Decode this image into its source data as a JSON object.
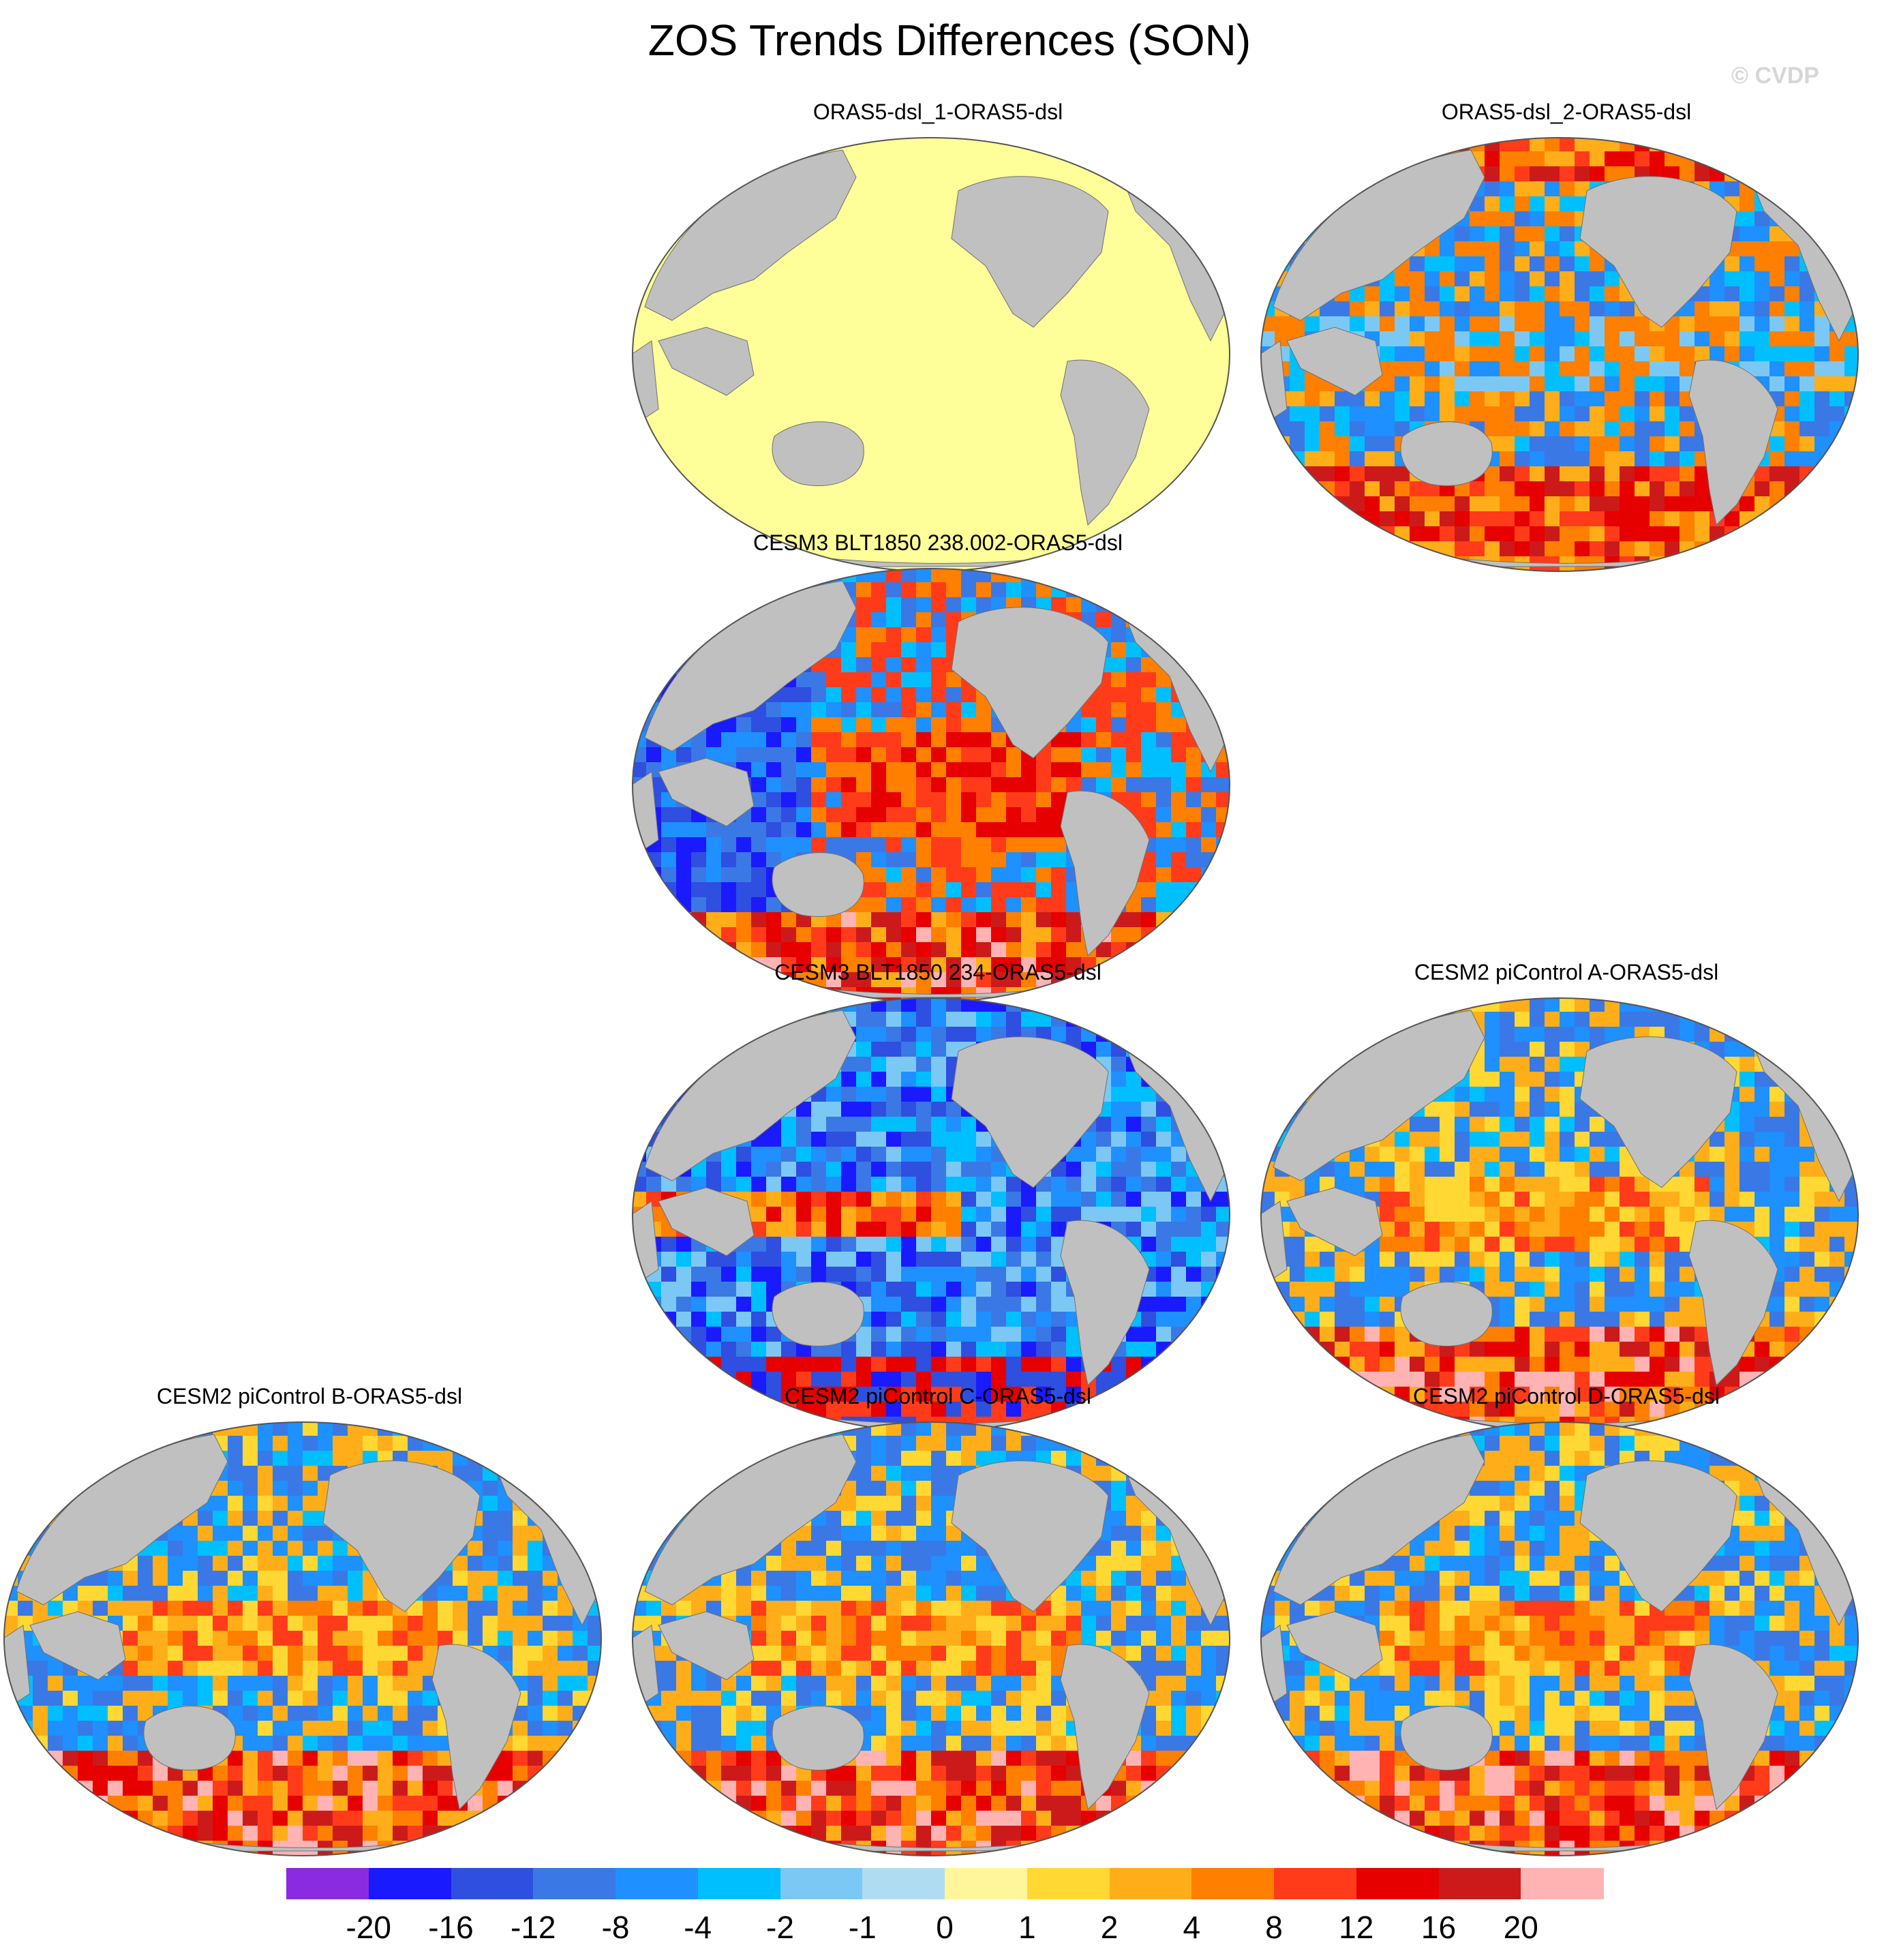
{
  "figure": {
    "title": "ZOS Trends Differences (SON)",
    "copyright": "© CVDP"
  },
  "panels": [
    {
      "title": "ORAS5-dsl_1-ORAS5-dsl",
      "pattern": "uniform"
    },
    {
      "title": "ORAS5-dsl_2-ORAS5-dsl",
      "pattern": "mixed-a"
    },
    {
      "title": "CESM3 BLT1850 238.002-ORAS5-dsl",
      "pattern": "warm-pacific"
    },
    {
      "title": "CESM3 BLT1850 234-ORAS5-dsl",
      "pattern": "cool"
    },
    {
      "title": "CESM2 piControl A-ORAS5-dsl",
      "pattern": "mixed-b"
    },
    {
      "title": "CESM2 piControl B-ORAS5-dsl",
      "pattern": "mixed-b"
    },
    {
      "title": "CESM2 piControl C-ORAS5-dsl",
      "pattern": "mixed-b"
    },
    {
      "title": "CESM2 piControl D-ORAS5-dsl",
      "pattern": "mixed-b"
    }
  ],
  "colorbar": {
    "colors": [
      "#8a2be2",
      "#1a1aff",
      "#2e4fe0",
      "#3a78e6",
      "#1e90ff",
      "#00bfff",
      "#7cc8f5",
      "#b0dcf2",
      "#fff59a",
      "#ffd833",
      "#ffae1a",
      "#ff7f00",
      "#ff3b1a",
      "#e60000",
      "#cc1a1a",
      "#ffb3b3"
    ],
    "tick_labels": [
      "-20",
      "-16",
      "-12",
      "-8",
      "-4",
      "-2",
      "-1",
      "0",
      "1",
      "2",
      "4",
      "8",
      "12",
      "16",
      "20"
    ]
  },
  "colors": {
    "land": "#c0c0c0",
    "uniform": "#ffff99"
  }
}
